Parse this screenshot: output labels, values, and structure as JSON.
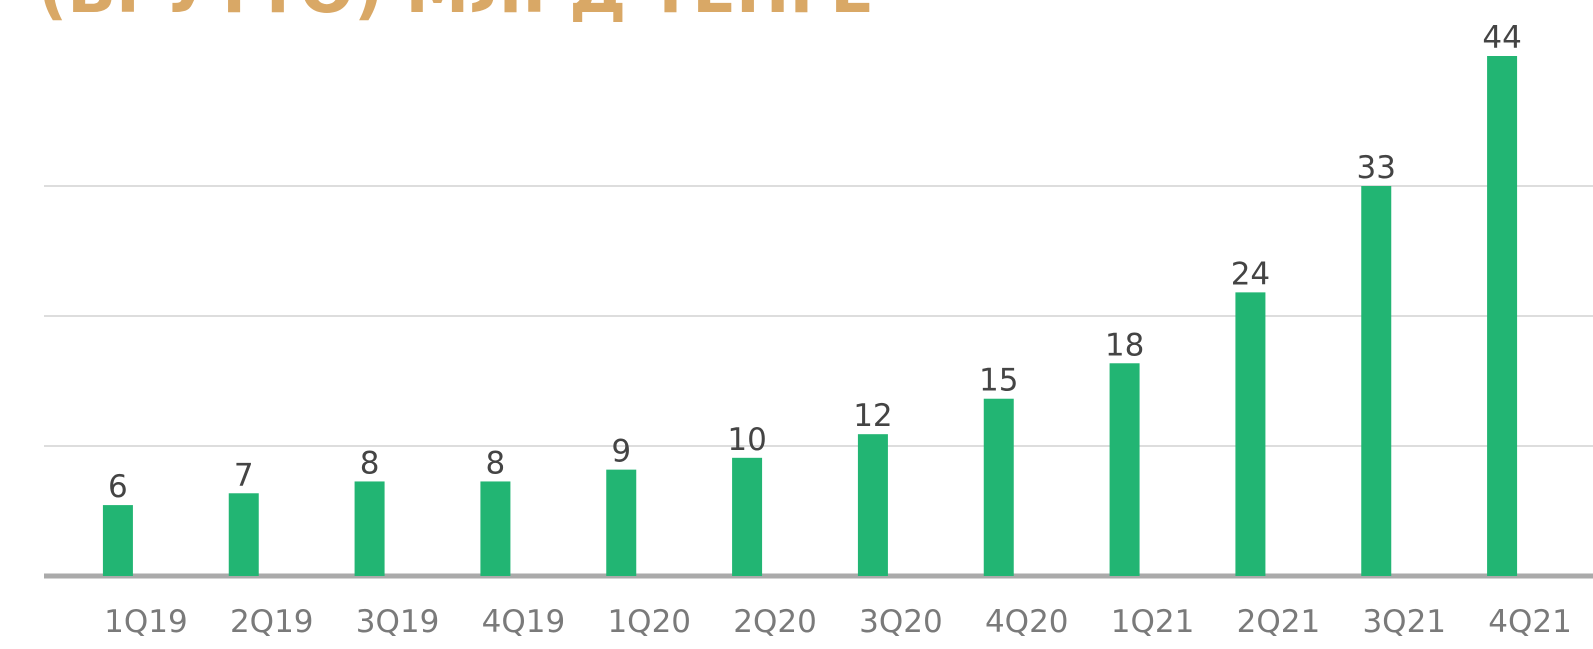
{
  "chart_data": {
    "type": "bar",
    "title": "(БРУТТО) МЛРД ТЕНГЕ",
    "categories": [
      "1Q19",
      "2Q19",
      "3Q19",
      "4Q19",
      "1Q20",
      "2Q20",
      "3Q20",
      "4Q20",
      "1Q21",
      "2Q21",
      "3Q21",
      "4Q21"
    ],
    "values": [
      6,
      7,
      8,
      8,
      9,
      10,
      12,
      15,
      18,
      24,
      33,
      44
    ],
    "color": "#22b573",
    "ylim": [
      0,
      48
    ],
    "yticks": [
      0,
      11,
      22,
      33
    ],
    "grid": true
  }
}
